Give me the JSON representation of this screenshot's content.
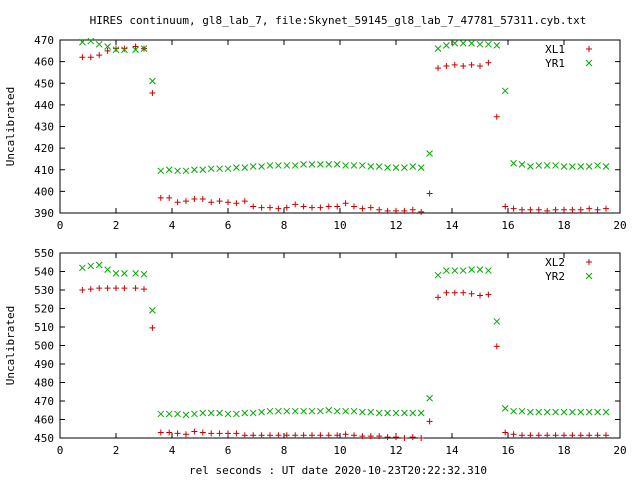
{
  "title": "HIRES continuum, gl8_lab_7, file:Skynet_59145_gl8_lab_7_47781_57311.cyb.txt",
  "xlabel": "rel seconds : UT date 2020-10-23T20:22:32.310",
  "colors": {
    "series1": "#cc0000",
    "series2": "#00aa00",
    "axis": "#000000"
  },
  "chart_data": [
    {
      "type": "scatter",
      "ylabel": "Uncalibrated",
      "xlim": [
        0,
        20
      ],
      "ylim": [
        390,
        470
      ],
      "xticks": [
        0,
        2,
        4,
        6,
        8,
        10,
        12,
        14,
        16,
        18,
        20
      ],
      "yticks": [
        390,
        400,
        410,
        420,
        430,
        440,
        450,
        460,
        470
      ],
      "legend_position": "top-right",
      "series": [
        {
          "name": "XL1",
          "marker": "plus",
          "color": "#cc0000",
          "x": [
            0.8,
            1.1,
            1.4,
            1.7,
            2.0,
            2.3,
            2.7,
            3.0,
            3.3,
            3.6,
            3.9,
            4.2,
            4.5,
            4.8,
            5.1,
            5.4,
            5.7,
            6.0,
            6.3,
            6.6,
            6.9,
            7.2,
            7.5,
            7.8,
            8.1,
            8.4,
            8.7,
            9.0,
            9.3,
            9.6,
            9.9,
            10.2,
            10.5,
            10.8,
            11.1,
            11.4,
            11.7,
            12.0,
            12.3,
            12.6,
            12.9,
            13.2,
            13.5,
            13.8,
            14.1,
            14.4,
            14.7,
            15.0,
            15.3,
            15.6,
            15.9,
            16.2,
            16.5,
            16.8,
            17.1,
            17.4,
            17.7,
            18.0,
            18.3,
            18.6,
            18.9,
            19.2,
            19.5
          ],
          "y": [
            462,
            462,
            463,
            465,
            466,
            466,
            467,
            466,
            445.5,
            397,
            397,
            395,
            395.5,
            396.5,
            396.5,
            395,
            395.5,
            395,
            394.5,
            395.5,
            393,
            392.5,
            392.5,
            392,
            392.5,
            394,
            393,
            392.5,
            392.5,
            393,
            393,
            394.5,
            393,
            392,
            392.5,
            391.5,
            391,
            391,
            391,
            391.5,
            390.5,
            399,
            457,
            458,
            458.5,
            458,
            458.5,
            458,
            459.5,
            434.5,
            393,
            392,
            391.5,
            391.5,
            391.5,
            391,
            391.5,
            391.5,
            391.5,
            391.5,
            392,
            391.5,
            392
          ]
        },
        {
          "name": "YR1",
          "marker": "cross",
          "color": "#00aa00",
          "x": [
            0.8,
            1.1,
            1.4,
            1.7,
            2.0,
            2.3,
            2.7,
            3.0,
            3.3,
            3.6,
            3.9,
            4.2,
            4.5,
            4.8,
            5.1,
            5.4,
            5.7,
            6.0,
            6.3,
            6.6,
            6.9,
            7.2,
            7.5,
            7.8,
            8.1,
            8.4,
            8.7,
            9.0,
            9.3,
            9.6,
            9.9,
            10.2,
            10.5,
            10.8,
            11.1,
            11.4,
            11.7,
            12.0,
            12.3,
            12.6,
            12.9,
            13.2,
            13.5,
            13.8,
            14.1,
            14.4,
            14.7,
            15.0,
            15.3,
            15.6,
            15.9,
            16.2,
            16.5,
            16.8,
            17.1,
            17.4,
            17.7,
            18.0,
            18.3,
            18.6,
            18.9,
            19.2,
            19.5
          ],
          "y": [
            469,
            469.5,
            468,
            467,
            465.5,
            465.5,
            465.5,
            466,
            451,
            409.5,
            410,
            409.5,
            409.5,
            410,
            410,
            410.5,
            410.5,
            410.5,
            411,
            411,
            411.5,
            411.5,
            412,
            412,
            412,
            412,
            412.5,
            412.5,
            412.5,
            412.5,
            412.5,
            412,
            412,
            412,
            411.5,
            411.5,
            411,
            411,
            411,
            411.5,
            411,
            417.5,
            466,
            467.5,
            468.5,
            468.5,
            468.5,
            468,
            468,
            467.5,
            446.5,
            413,
            412.5,
            411.5,
            412,
            412,
            412,
            411.5,
            411.5,
            411.5,
            411.5,
            412,
            411.5
          ]
        }
      ]
    },
    {
      "type": "scatter",
      "ylabel": "Uncalibrated",
      "xlim": [
        0,
        20
      ],
      "ylim": [
        450,
        550
      ],
      "xticks": [
        0,
        2,
        4,
        6,
        8,
        10,
        12,
        14,
        16,
        18,
        20
      ],
      "yticks": [
        450,
        460,
        470,
        480,
        490,
        500,
        510,
        520,
        530,
        540,
        550
      ],
      "legend_position": "top-right",
      "series": [
        {
          "name": "XL2",
          "marker": "plus",
          "color": "#cc0000",
          "x": [
            0.8,
            1.1,
            1.4,
            1.7,
            2.0,
            2.3,
            2.7,
            3.0,
            3.3,
            3.6,
            3.9,
            4.2,
            4.5,
            4.8,
            5.1,
            5.4,
            5.7,
            6.0,
            6.3,
            6.6,
            6.9,
            7.2,
            7.5,
            7.8,
            8.1,
            8.4,
            8.7,
            9.0,
            9.3,
            9.6,
            9.9,
            10.2,
            10.5,
            10.8,
            11.1,
            11.4,
            11.7,
            12.0,
            12.3,
            12.6,
            12.9,
            13.2,
            13.5,
            13.8,
            14.1,
            14.4,
            14.7,
            15.0,
            15.3,
            15.6,
            15.9,
            16.2,
            16.5,
            16.8,
            17.1,
            17.4,
            17.7,
            18.0,
            18.3,
            18.6,
            18.9,
            19.2,
            19.5
          ],
          "y": [
            530,
            530.5,
            531,
            531,
            531,
            531,
            531,
            530.5,
            509.5,
            453,
            453,
            452.5,
            452,
            453.5,
            453,
            452.5,
            452.5,
            452.5,
            452.5,
            451.5,
            451.5,
            451.5,
            451.5,
            451.5,
            451.5,
            451.5,
            451.5,
            451.5,
            451.5,
            451.5,
            451.5,
            452,
            451.5,
            451,
            451,
            451,
            450.5,
            450.5,
            450,
            450.5,
            450,
            459,
            526,
            528.5,
            528.5,
            528.5,
            528,
            527,
            527.5,
            499.5,
            453,
            452,
            451.5,
            451.5,
            451.5,
            451.5,
            451.5,
            451.5,
            451.5,
            451.5,
            451.5,
            451.5,
            451.5
          ]
        },
        {
          "name": "YR2",
          "marker": "cross",
          "color": "#00aa00",
          "x": [
            0.8,
            1.1,
            1.4,
            1.7,
            2.0,
            2.3,
            2.7,
            3.0,
            3.3,
            3.6,
            3.9,
            4.2,
            4.5,
            4.8,
            5.1,
            5.4,
            5.7,
            6.0,
            6.3,
            6.6,
            6.9,
            7.2,
            7.5,
            7.8,
            8.1,
            8.4,
            8.7,
            9.0,
            9.3,
            9.6,
            9.9,
            10.2,
            10.5,
            10.8,
            11.1,
            11.4,
            11.7,
            12.0,
            12.3,
            12.6,
            12.9,
            13.2,
            13.5,
            13.8,
            14.1,
            14.4,
            14.7,
            15.0,
            15.3,
            15.6,
            15.9,
            16.2,
            16.5,
            16.8,
            17.1,
            17.4,
            17.7,
            18.0,
            18.3,
            18.6,
            18.9,
            19.2,
            19.5
          ],
          "y": [
            542,
            543,
            543.5,
            541,
            539,
            539,
            539,
            538.5,
            519,
            463,
            463,
            463,
            462.5,
            463,
            463.5,
            463.5,
            463.5,
            463,
            463,
            463.5,
            463.5,
            464,
            464.5,
            464.5,
            464.5,
            464.5,
            464.5,
            464.5,
            464.5,
            465,
            464.5,
            464.5,
            464.5,
            464,
            464,
            463.5,
            463.5,
            463.5,
            463.5,
            463.5,
            463.5,
            471.5,
            538,
            540.5,
            540.5,
            540.5,
            541,
            541,
            540.5,
            513,
            466,
            464.5,
            464.5,
            464,
            464,
            464,
            464,
            464,
            464,
            464,
            464,
            464,
            464
          ]
        }
      ]
    }
  ]
}
